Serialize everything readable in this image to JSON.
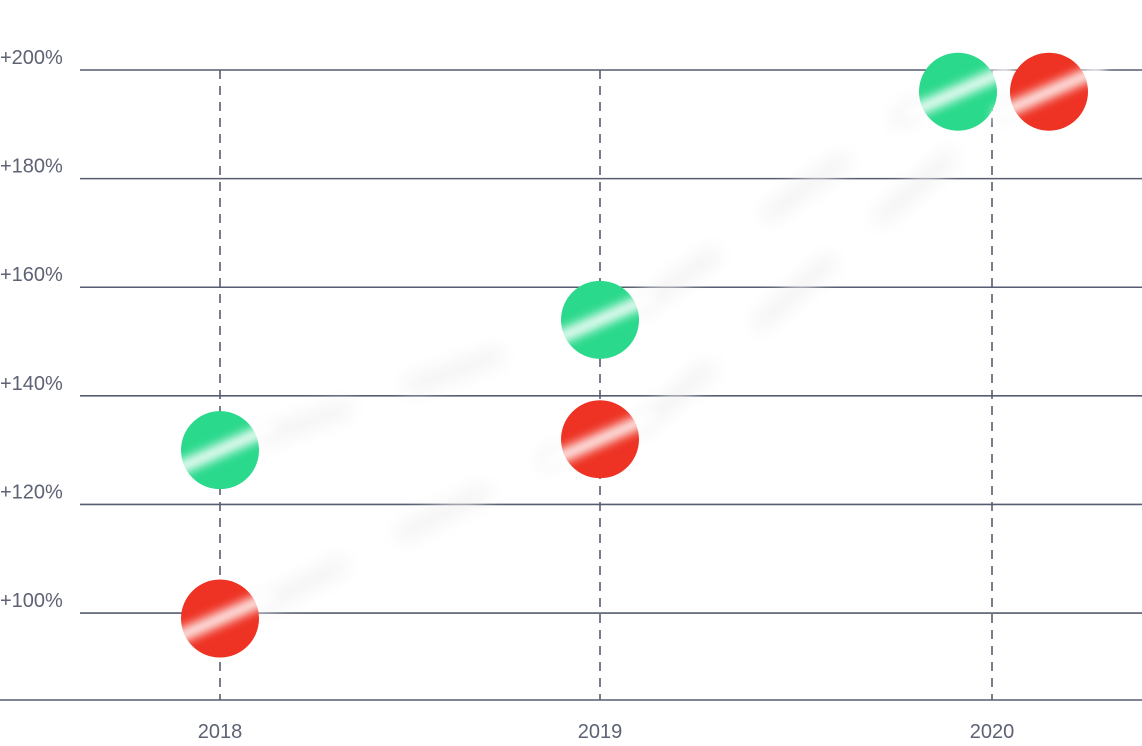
{
  "chart_data": {
    "type": "scatter",
    "categories": [
      "2018",
      "2019",
      "2020"
    ],
    "y_ticks": [
      100,
      120,
      140,
      160,
      180,
      200
    ],
    "y_tick_labels": [
      "+100%",
      "+120%",
      "+140%",
      "+160%",
      "+180%",
      "+200%"
    ],
    "y_unit": "%",
    "ylim": [
      84,
      200
    ],
    "grid": {
      "horizontal": true,
      "vertical_dashed": true
    },
    "legend": "none",
    "series": [
      {
        "color": "#2ad98c",
        "values": [
          130,
          154,
          196
        ]
      },
      {
        "color": "#ee3324",
        "values": [
          99,
          132,
          196
        ]
      }
    ],
    "colors": {
      "grid": "#575d70",
      "tick_text": "#5d6274",
      "glare": "#ffffff"
    }
  }
}
